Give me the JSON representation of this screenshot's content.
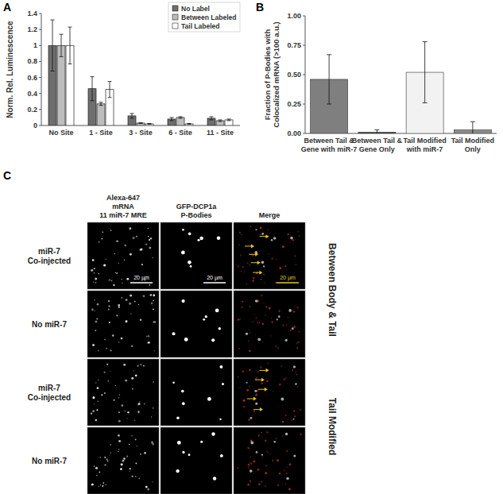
{
  "chart_data": [
    {
      "type": "bar",
      "title": "A",
      "y_label": "Norm. Rel. Luminescence",
      "categories": [
        "No Site",
        "1 - Site",
        "3 - Site",
        "6 - Site",
        "11 - Site"
      ],
      "series": [
        {
          "name": "No Label",
          "color": "#6e6e6e",
          "values": [
            1,
            0.46,
            0.12,
            0.08,
            0.09
          ],
          "errors": [
            0.32,
            0.15,
            0.03,
            0.02,
            0.02
          ]
        },
        {
          "name": "Between Labeled",
          "color": "#bdbdbd",
          "values": [
            1,
            0.27,
            0.03,
            0.1,
            0.06
          ],
          "errors": [
            0.14,
            0.02,
            0.005,
            0.01,
            0.01
          ]
        },
        {
          "name": "Tail Labeled",
          "color": "#ffffff",
          "values": [
            1,
            0.45,
            0.02,
            0.02,
            0.07
          ],
          "errors": [
            0.23,
            0.1,
            0.005,
            0.005,
            0.01
          ]
        }
      ],
      "ylim": [
        0,
        1.4
      ],
      "yticks": [
        0,
        0.2,
        0.4,
        0.6,
        0.8,
        1,
        1.2,
        1.4
      ],
      "grid": false,
      "legend": "top-right"
    },
    {
      "type": "bar",
      "title": "B",
      "y_label": "Fraction of P-Bodies with Colocalized mRNA (>100 a.u.)",
      "categories": [
        "Between Tail & Gene with miR-7",
        "Between Tail & Gene Only",
        "Tail Modified with miR-7",
        "Tail Modified Only"
      ],
      "values": [
        0.46,
        0.01,
        0.52,
        0.03
      ],
      "errors": [
        0.21,
        0.02,
        0.26,
        0.07
      ],
      "colors": [
        "#7f7f7f",
        "#3f3f3f",
        "#f2f2f2",
        "#8c8c8c"
      ],
      "ylim": [
        0,
        1
      ],
      "yticks": [
        {
          "value": 0,
          "label": "0.00"
        },
        {
          "value": 0.25,
          "label": "0.25"
        },
        {
          "value": 0.5,
          "label": "0.50"
        },
        {
          "value": 0.75,
          "label": "0.75"
        },
        {
          "value": 1,
          "label": "1.00"
        }
      ],
      "grid": false
    }
  ],
  "panel_c": {
    "title": "C",
    "column_headers": [
      [
        "Alexa-647",
        "mRNA",
        "11 miR-7 MRE"
      ],
      [
        "GFP-DCP1a",
        "P-Bodies"
      ],
      [
        "Merge"
      ]
    ],
    "row_labels": [
      [
        "miR-7",
        "Co-injected"
      ],
      [
        "No miR-7"
      ],
      [
        "miR-7",
        "Co-injected"
      ],
      [
        "No miR-7"
      ]
    ],
    "group_labels": [
      "Between Body & Tail",
      "Tail Modified"
    ],
    "scale_bar": "20 µm"
  }
}
